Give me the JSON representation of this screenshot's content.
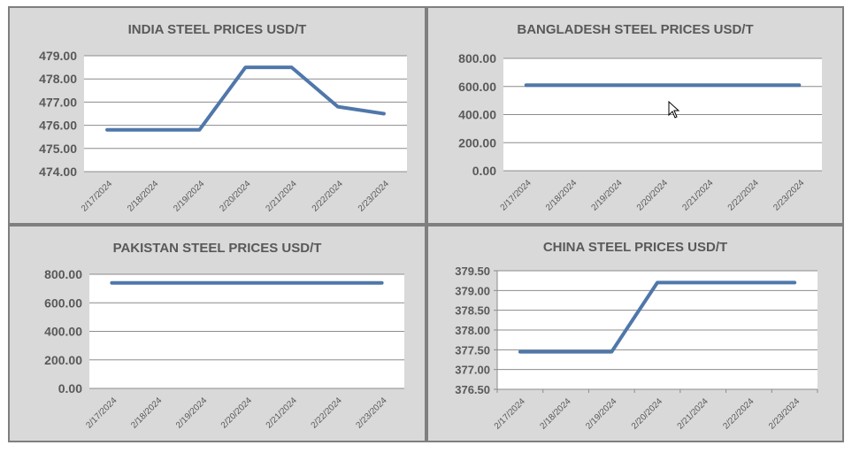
{
  "chart_data": [
    {
      "type": "line",
      "title": "INDIA STEEL PRICES USD/T",
      "categories": [
        "2/17/2024",
        "2/18/2024",
        "2/19/2024",
        "2/20/2024",
        "2/21/2024",
        "2/22/2024",
        "2/23/2024"
      ],
      "series": [
        {
          "values": [
            475.8,
            475.8,
            475.8,
            478.5,
            478.5,
            476.8,
            476.5
          ]
        }
      ],
      "ylim": [
        474.0,
        479.0
      ],
      "yticks": [
        "474.00",
        "475.00",
        "476.00",
        "477.00",
        "478.00",
        "479.00"
      ],
      "grid": true,
      "color": "#4f77aa"
    },
    {
      "type": "line",
      "title": "BANGLADESH STEEL PRICES USD/T",
      "categories": [
        "2/17/2024",
        "2/18/2024",
        "2/19/2024",
        "2/20/2024",
        "2/21/2024",
        "2/22/2024",
        "2/23/2024"
      ],
      "series": [
        {
          "values": [
            610,
            610,
            610,
            610,
            610,
            610,
            610
          ]
        }
      ],
      "ylim": [
        0,
        800
      ],
      "yticks": [
        "0.00",
        "200.00",
        "400.00",
        "600.00",
        "800.00"
      ],
      "grid": true,
      "color": "#4f77aa"
    },
    {
      "type": "line",
      "title": "PAKISTAN STEEL PRICES USD/T",
      "categories": [
        "2/17/2024",
        "2/18/2024",
        "2/19/2024",
        "2/20/2024",
        "2/21/2024",
        "2/22/2024",
        "2/23/2024"
      ],
      "series": [
        {
          "values": [
            740,
            740,
            740,
            740,
            740,
            740,
            740
          ]
        }
      ],
      "ylim": [
        0,
        800
      ],
      "yticks": [
        "0.00",
        "200.00",
        "400.00",
        "600.00",
        "800.00"
      ],
      "grid": true,
      "color": "#4f77aa"
    },
    {
      "type": "line",
      "title": "CHINA STEEL PRICES USD/T",
      "categories": [
        "2/17/2024",
        "2/18/2024",
        "2/19/2024",
        "2/20/2024",
        "2/21/2024",
        "2/22/2024",
        "2/23/2024"
      ],
      "series": [
        {
          "values": [
            377.45,
            377.45,
            377.45,
            379.2,
            379.2,
            379.2,
            379.2
          ]
        }
      ],
      "ylim": [
        376.5,
        379.5
      ],
      "yticks": [
        "376.50",
        "377.00",
        "377.50",
        "378.00",
        "378.50",
        "379.00",
        "379.50"
      ],
      "grid": true,
      "color": "#4f77aa"
    }
  ],
  "cursor_icon": "mouse-pointer-icon"
}
